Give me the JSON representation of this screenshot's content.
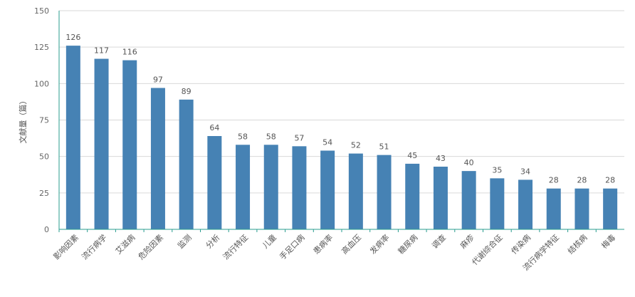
{
  "chart_data": {
    "type": "bar",
    "ylabel": "文献量（篇）",
    "ylim": [
      0,
      150
    ],
    "yticks": [
      0,
      25,
      50,
      75,
      100,
      125,
      150
    ],
    "grid": true,
    "bar_color": "#4682b4",
    "axis_color": "#2a9d8f",
    "categories": [
      "影响因素",
      "流行病学",
      "艾滋病",
      "危险因素",
      "监测",
      "分析",
      "流行特征",
      "儿童",
      "手足口病",
      "患病率",
      "高血压",
      "发病率",
      "糖尿病",
      "调查",
      "麻疹",
      "代谢综合征",
      "传染病",
      "流行病学特征",
      "结核病",
      "梅毒"
    ],
    "values": [
      126,
      117,
      116,
      97,
      89,
      64,
      58,
      58,
      57,
      54,
      52,
      51,
      45,
      43,
      40,
      35,
      34,
      28,
      28,
      28
    ]
  }
}
